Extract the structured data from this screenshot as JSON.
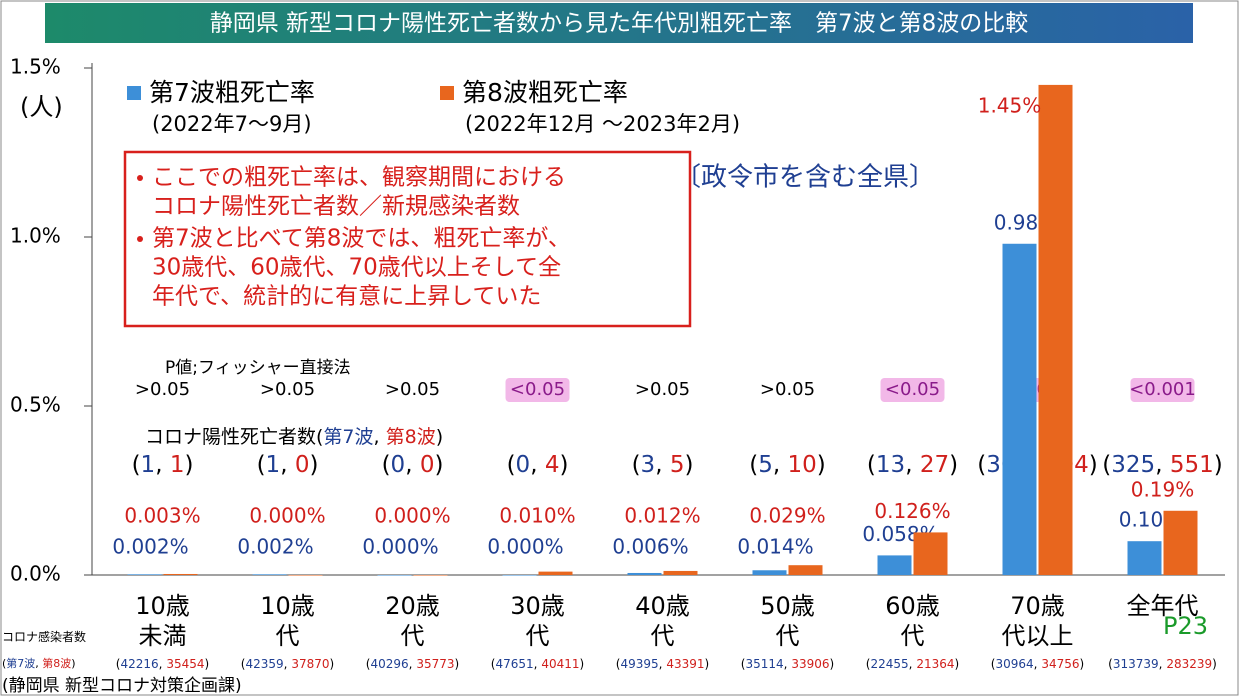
{
  "chart_data": {
    "type": "bar",
    "title": "静岡県 新型コロナ陽性死亡者数から見た年代別粗死亡率　第7波と第8波の比較",
    "y_unit": "(人)",
    "categories": [
      [
        "10歳",
        "未満"
      ],
      [
        "10歳",
        "代"
      ],
      [
        "20歳",
        "代"
      ],
      [
        "30歳",
        "代"
      ],
      [
        "40歳",
        "代"
      ],
      [
        "50歳",
        "代"
      ],
      [
        "60歳",
        "代"
      ],
      [
        "70歳",
        "代以上"
      ],
      [
        "全年代"
      ]
    ],
    "series": [
      {
        "name": "第7波粗死亡率",
        "period": "(2022年7〜9月)",
        "color": "#3d8fd8",
        "label_color": "#1f3f92",
        "values": [
          0.002,
          0.002,
          0.0,
          0.0,
          0.006,
          0.014,
          0.058,
          0.98,
          0.1
        ],
        "value_labels": [
          "0.002%",
          "0.002%",
          "0.000%",
          "0.000%",
          "0.006%",
          "0.014%",
          "0.058%",
          "0.98%",
          "0.10%"
        ]
      },
      {
        "name": "第8波粗死亡率",
        "period": "(2022年12月 〜2023年2月)",
        "color": "#e8661e",
        "label_color": "#d0201c",
        "values": [
          0.003,
          0.0,
          0.0,
          0.01,
          0.012,
          0.029,
          0.126,
          1.45,
          0.19
        ],
        "value_labels": [
          "0.003%",
          "0.000%",
          "0.000%",
          "0.010%",
          "0.012%",
          "0.029%",
          "0.126%",
          "1.45%",
          "0.19%"
        ]
      }
    ],
    "ylim": [
      0,
      1.5
    ],
    "yticks": [
      {
        "value": 0,
        "label": "0.0%"
      },
      {
        "value": 0.5,
        "label": "0.5%"
      },
      {
        "value": 1.0,
        "label": "1.0%"
      },
      {
        "value": 1.5,
        "label": "1.5%"
      }
    ],
    "scope": "〔政令市を含む全県〕",
    "notes": [
      [
        "ここでの粗死亡率は、観察期間における",
        "コロナ陽性死亡者数／新規感染者数"
      ],
      [
        "第7波と比べて第8波では、粗死亡率が、",
        "30歳代、60歳代、70歳代以上そして全",
        "年代で、統計的に有意に上昇していた"
      ]
    ],
    "p_label": "P値;フィッシャー直接法",
    "p_values": [
      ">0.05",
      ">0.05",
      ">0.05",
      "<0.05",
      ">0.05",
      ">0.05",
      "<0.05",
      "<0.001",
      "<0.001"
    ],
    "p_highlight": [
      false,
      false,
      false,
      true,
      false,
      false,
      true,
      true,
      true
    ],
    "punctuation": [
      "(",
      ", ",
      ")"
    ],
    "deaths_label": [
      "コロナ陽性死亡者数(",
      "第7波",
      ", ",
      "第8波",
      ")"
    ],
    "deaths": [
      [
        1,
        1
      ],
      [
        1,
        0
      ],
      [
        0,
        0
      ],
      [
        0,
        4
      ],
      [
        3,
        5
      ],
      [
        5,
        10
      ],
      [
        13,
        27
      ],
      [
        302,
        504
      ],
      [
        325,
        551
      ]
    ],
    "infections_label": [
      "コロナ感染者数",
      "(",
      "第7波",
      ", ",
      "第8波",
      ")"
    ],
    "infections": [
      [
        42216,
        35454
      ],
      [
        42359,
        37870
      ],
      [
        40296,
        35773
      ],
      [
        47651,
        40411
      ],
      [
        49395,
        43391
      ],
      [
        35114,
        33906
      ],
      [
        22455,
        21364
      ],
      [
        30964,
        34756
      ],
      [
        313739,
        283239
      ]
    ],
    "page": "P23",
    "source": "(静岡県 新型コロナ対策企画課)"
  }
}
